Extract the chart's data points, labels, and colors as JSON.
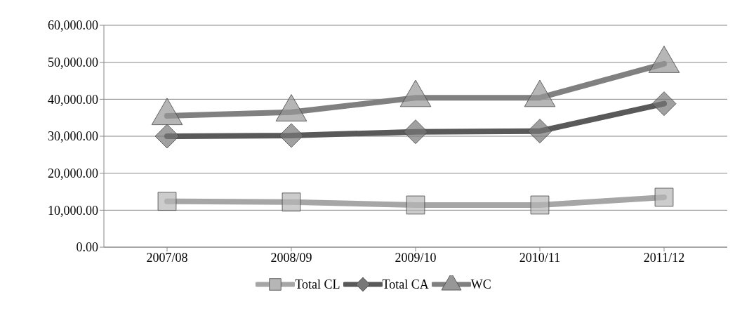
{
  "chart_data": {
    "type": "line",
    "categories": [
      "2007/08",
      "2008/09",
      "2009/10",
      "2010/11",
      "2011/12"
    ],
    "series": [
      {
        "name": "Total CL",
        "color": "#a6a6a6",
        "marker": "square",
        "values": [
          12400,
          12200,
          11400,
          11400,
          13500
        ]
      },
      {
        "name": "Total CA",
        "color": "#595959",
        "marker": "diamond",
        "values": [
          30000,
          30200,
          31200,
          31400,
          38800
        ]
      },
      {
        "name": "WC",
        "color": "#808080",
        "marker": "triangle",
        "values": [
          35500,
          36500,
          40400,
          40400,
          49600
        ]
      }
    ],
    "ylim": [
      0,
      60000
    ],
    "yticks": [
      {
        "value": 0,
        "label": "0.00"
      },
      {
        "value": 10000,
        "label": "10,000.00"
      },
      {
        "value": 20000,
        "label": "20,000.00"
      },
      {
        "value": 30000,
        "label": "30,000.00"
      },
      {
        "value": 40000,
        "label": "40,000.00"
      },
      {
        "value": 50000,
        "label": "50,000.00"
      },
      {
        "value": 60000,
        "label": "60,000.00"
      }
    ],
    "grid": "y",
    "legend": "bottom",
    "line_style": "solid"
  }
}
